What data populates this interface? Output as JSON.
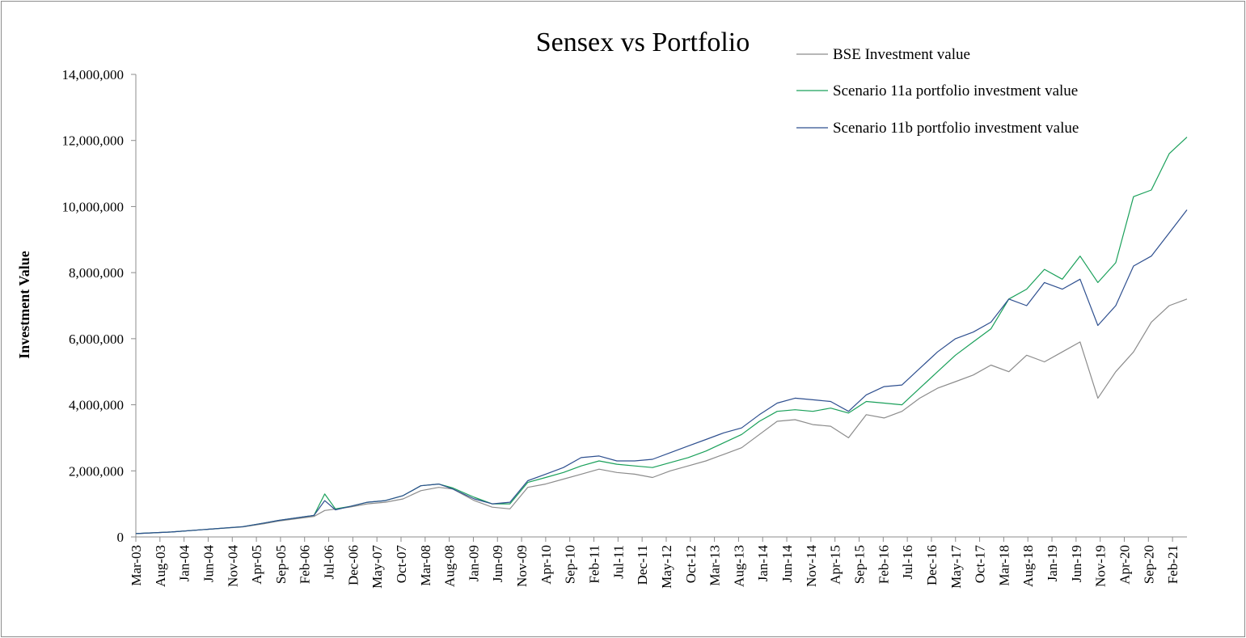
{
  "chart_data": {
    "type": "line",
    "title": "Sensex vs Portfolio",
    "xlabel": "",
    "ylabel": "Investment Value",
    "ylim": [
      0,
      14000000
    ],
    "y_ticks": [
      "0",
      "2,000,000",
      "4,000,000",
      "6,000,000",
      "8,000,000",
      "10,000,000",
      "12,000,000",
      "14,000,000"
    ],
    "y_tick_values": [
      0,
      2000000,
      4000000,
      6000000,
      8000000,
      10000000,
      12000000,
      14000000
    ],
    "x_tick_labels": [
      "Mar-03",
      "Aug-03",
      "Jan-04",
      "Jun-04",
      "Nov-04",
      "Apr-05",
      "Sep-05",
      "Feb-06",
      "Jul-06",
      "Dec-06",
      "May-07",
      "Oct-07",
      "Mar-08",
      "Aug-08",
      "Jan-09",
      "Jun-09",
      "Nov-09",
      "Apr-10",
      "Sep-10",
      "Feb-11",
      "Jul-11",
      "Dec-11",
      "May-12",
      "Oct-12",
      "Mar-13",
      "Aug-13",
      "Jan-14",
      "Jun-14",
      "Nov-14",
      "Apr-15",
      "Sep-15",
      "Feb-16",
      "Jul-16",
      "Dec-16",
      "May-17",
      "Oct-17",
      "Mar-18",
      "Aug-18",
      "Jan-19",
      "Jun-19",
      "Nov-19",
      "Apr-20",
      "Sep-20",
      "Feb-21"
    ],
    "x_period_months": 5,
    "total_months": 218,
    "legend_position": "top-right",
    "grid": false,
    "series": [
      {
        "name": "BSE Investment value",
        "color": "#8c8c8c",
        "knots": [
          [
            0,
            100000
          ],
          [
            10,
            150000
          ],
          [
            20,
            230000
          ],
          [
            30,
            300000
          ],
          [
            36,
            400000
          ],
          [
            40,
            480000
          ],
          [
            50,
            620000
          ],
          [
            53,
            800000
          ],
          [
            60,
            900000
          ],
          [
            65,
            1000000
          ],
          [
            70,
            1050000
          ],
          [
            75,
            1150000
          ],
          [
            80,
            1400000
          ],
          [
            85,
            1500000
          ],
          [
            89,
            1450000
          ],
          [
            95,
            1100000
          ],
          [
            100,
            900000
          ],
          [
            105,
            850000
          ],
          [
            110,
            1500000
          ],
          [
            115,
            1600000
          ],
          [
            120,
            1750000
          ],
          [
            125,
            1900000
          ],
          [
            130,
            2050000
          ],
          [
            135,
            1950000
          ],
          [
            140,
            1900000
          ],
          [
            145,
            1800000
          ],
          [
            150,
            2000000
          ],
          [
            155,
            2150000
          ],
          [
            160,
            2300000
          ],
          [
            165,
            2500000
          ],
          [
            170,
            2700000
          ],
          [
            175,
            3100000
          ],
          [
            180,
            3500000
          ],
          [
            185,
            3550000
          ],
          [
            190,
            3400000
          ],
          [
            195,
            3350000
          ],
          [
            200,
            3000000
          ],
          [
            205,
            3700000
          ],
          [
            210,
            3600000
          ],
          [
            215,
            3800000
          ],
          [
            220,
            4200000
          ],
          [
            225,
            4500000
          ],
          [
            230,
            4700000
          ],
          [
            235,
            4900000
          ],
          [
            240,
            5200000
          ],
          [
            245,
            5000000
          ],
          [
            250,
            5500000
          ],
          [
            255,
            5300000
          ],
          [
            260,
            5600000
          ],
          [
            265,
            5900000
          ],
          [
            270,
            4200000
          ],
          [
            275,
            5000000
          ],
          [
            280,
            5600000
          ],
          [
            285,
            6500000
          ],
          [
            290,
            7000000
          ],
          [
            295,
            7200000
          ]
        ]
      },
      {
        "name": "Scenario 11a portfolio investment value",
        "color": "#1aa05a",
        "knots": [
          [
            0,
            100000
          ],
          [
            10,
            150000
          ],
          [
            20,
            230000
          ],
          [
            30,
            310000
          ],
          [
            36,
            420000
          ],
          [
            40,
            500000
          ],
          [
            50,
            650000
          ],
          [
            53,
            1300000
          ],
          [
            56,
            850000
          ],
          [
            60,
            920000
          ],
          [
            65,
            1050000
          ],
          [
            70,
            1100000
          ],
          [
            75,
            1250000
          ],
          [
            80,
            1550000
          ],
          [
            85,
            1600000
          ],
          [
            89,
            1480000
          ],
          [
            95,
            1200000
          ],
          [
            100,
            1000000
          ],
          [
            105,
            1000000
          ],
          [
            110,
            1650000
          ],
          [
            115,
            1800000
          ],
          [
            120,
            1950000
          ],
          [
            125,
            2150000
          ],
          [
            130,
            2300000
          ],
          [
            135,
            2200000
          ],
          [
            140,
            2150000
          ],
          [
            145,
            2100000
          ],
          [
            150,
            2250000
          ],
          [
            155,
            2400000
          ],
          [
            160,
            2600000
          ],
          [
            165,
            2850000
          ],
          [
            170,
            3100000
          ],
          [
            175,
            3500000
          ],
          [
            180,
            3800000
          ],
          [
            185,
            3850000
          ],
          [
            190,
            3800000
          ],
          [
            195,
            3900000
          ],
          [
            200,
            3750000
          ],
          [
            205,
            4100000
          ],
          [
            210,
            4050000
          ],
          [
            215,
            4000000
          ],
          [
            220,
            4500000
          ],
          [
            225,
            5000000
          ],
          [
            230,
            5500000
          ],
          [
            235,
            5900000
          ],
          [
            240,
            6300000
          ],
          [
            245,
            7200000
          ],
          [
            250,
            7500000
          ],
          [
            255,
            8100000
          ],
          [
            260,
            7800000
          ],
          [
            265,
            8500000
          ],
          [
            270,
            7700000
          ],
          [
            275,
            8300000
          ],
          [
            280,
            10300000
          ],
          [
            285,
            10500000
          ],
          [
            290,
            11600000
          ],
          [
            295,
            12100000
          ]
        ]
      },
      {
        "name": "Scenario 11b portfolio investment value",
        "color": "#2e4f8f",
        "knots": [
          [
            0,
            100000
          ],
          [
            10,
            150000
          ],
          [
            20,
            230000
          ],
          [
            30,
            310000
          ],
          [
            36,
            420000
          ],
          [
            40,
            500000
          ],
          [
            50,
            650000
          ],
          [
            53,
            1100000
          ],
          [
            56,
            820000
          ],
          [
            60,
            920000
          ],
          [
            65,
            1050000
          ],
          [
            70,
            1100000
          ],
          [
            75,
            1250000
          ],
          [
            80,
            1550000
          ],
          [
            85,
            1600000
          ],
          [
            89,
            1450000
          ],
          [
            95,
            1150000
          ],
          [
            100,
            1000000
          ],
          [
            105,
            1050000
          ],
          [
            110,
            1700000
          ],
          [
            115,
            1900000
          ],
          [
            120,
            2100000
          ],
          [
            125,
            2400000
          ],
          [
            130,
            2450000
          ],
          [
            135,
            2300000
          ],
          [
            140,
            2300000
          ],
          [
            145,
            2350000
          ],
          [
            150,
            2550000
          ],
          [
            155,
            2750000
          ],
          [
            160,
            2950000
          ],
          [
            165,
            3150000
          ],
          [
            170,
            3300000
          ],
          [
            175,
            3700000
          ],
          [
            180,
            4050000
          ],
          [
            185,
            4200000
          ],
          [
            190,
            4150000
          ],
          [
            195,
            4100000
          ],
          [
            200,
            3800000
          ],
          [
            205,
            4300000
          ],
          [
            210,
            4550000
          ],
          [
            215,
            4600000
          ],
          [
            220,
            5100000
          ],
          [
            225,
            5600000
          ],
          [
            230,
            6000000
          ],
          [
            235,
            6200000
          ],
          [
            240,
            6500000
          ],
          [
            245,
            7200000
          ],
          [
            250,
            7000000
          ],
          [
            255,
            7700000
          ],
          [
            260,
            7500000
          ],
          [
            265,
            7800000
          ],
          [
            270,
            6400000
          ],
          [
            275,
            7000000
          ],
          [
            280,
            8200000
          ],
          [
            285,
            8500000
          ],
          [
            290,
            9200000
          ],
          [
            295,
            9900000
          ]
        ]
      }
    ]
  }
}
